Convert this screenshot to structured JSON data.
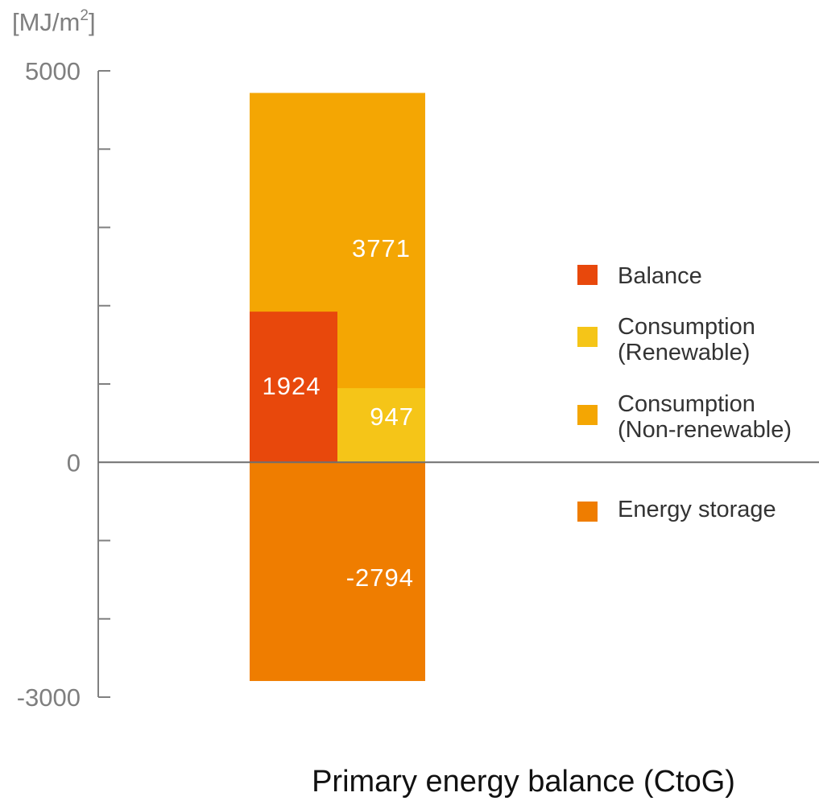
{
  "chart_data": {
    "type": "bar",
    "title": "",
    "xlabel": "Primary energy balance (CtoG)",
    "ylabel": "[MJ/m2]",
    "ylim": [
      -3000,
      5000
    ],
    "yticks": [
      -3000,
      0,
      5000
    ],
    "tick_labels": [
      "-3000",
      "0",
      "5000"
    ],
    "grid": false,
    "legend_position": "right",
    "series": [
      {
        "name": "Balance",
        "value": 1924,
        "label": "1924",
        "color": "#e8480c"
      },
      {
        "name": "Consumption (Renewable)",
        "value": 947,
        "label": "947",
        "color": "#f5c518"
      },
      {
        "name": "Consumption (Non-renewable)",
        "value": 3771,
        "label": "3771",
        "color": "#f4a603"
      },
      {
        "name": "Energy storage",
        "value": -2794,
        "label": "-2794",
        "color": "#ef7d00"
      }
    ],
    "legend": [
      {
        "lines": [
          "Balance"
        ],
        "color": "#e8480c"
      },
      {
        "lines": [
          "Consumption",
          "(Renewable)"
        ],
        "color": "#f5c518"
      },
      {
        "lines": [
          "Consumption",
          "(Non-renewable)"
        ],
        "color": "#f4a603"
      },
      {
        "lines": [
          "Energy storage"
        ],
        "color": "#ef7d00"
      }
    ]
  }
}
